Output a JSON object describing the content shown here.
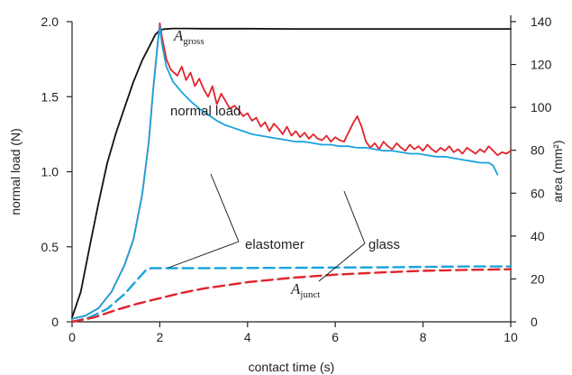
{
  "chart_data": {
    "type": "line",
    "xlabel": "contact time (s)",
    "ylabel_left": "normal load (N)",
    "ylabel_right": "area (mm²)",
    "xlim": [
      0,
      10
    ],
    "ylim_left": [
      0,
      2.0
    ],
    "ylim_right": [
      0,
      140
    ],
    "x_ticks": [
      0,
      2,
      4,
      6,
      8,
      10
    ],
    "y_left_ticks": [
      0,
      0.5,
      1.0,
      1.5,
      2.0
    ],
    "y_left_tick_labels": [
      "0",
      "0.5",
      "1.0",
      "1.5",
      "2.0"
    ],
    "y_right_ticks": [
      0,
      20,
      40,
      60,
      80,
      100,
      120,
      140
    ],
    "grid": false,
    "series": [
      {
        "key": "a_gross",
        "axis": "right",
        "color": "#111111",
        "dash": "solid",
        "x": [
          0,
          0.2,
          0.4,
          0.6,
          0.8,
          1.0,
          1.2,
          1.4,
          1.6,
          1.7,
          1.8,
          1.9,
          2.0,
          2.1,
          2.3,
          2.6,
          3,
          4,
          5,
          6,
          7,
          8,
          9,
          10
        ],
        "y": [
          2,
          14,
          35,
          55,
          74,
          88,
          100,
          112,
          122,
          126,
          130,
          134,
          136,
          136.5,
          136.8,
          136.8,
          136.7,
          136.7,
          136.6,
          136.6,
          136.6,
          136.6,
          136.6,
          136.6
        ]
      },
      {
        "key": "glass_load",
        "axis": "left",
        "color": "#e0242c",
        "dash": "solid",
        "x": [
          0,
          0.3,
          0.6,
          0.9,
          1.2,
          1.4,
          1.6,
          1.75,
          1.85,
          1.95,
          2.0,
          2.05,
          2.15,
          2.25,
          2.4,
          2.5,
          2.6,
          2.7,
          2.8,
          2.9,
          3.0,
          3.1,
          3.2,
          3.3,
          3.4,
          3.5,
          3.6,
          3.7,
          3.8,
          3.9,
          4.0,
          4.1,
          4.2,
          4.3,
          4.4,
          4.5,
          4.6,
          4.7,
          4.8,
          4.9,
          5.0,
          5.1,
          5.2,
          5.3,
          5.4,
          5.5,
          5.6,
          5.7,
          5.8,
          5.9,
          6.0,
          6.1,
          6.2,
          6.3,
          6.4,
          6.5,
          6.6,
          6.7,
          6.8,
          6.9,
          7.0,
          7.1,
          7.2,
          7.3,
          7.4,
          7.5,
          7.6,
          7.7,
          7.8,
          7.9,
          8.0,
          8.1,
          8.2,
          8.3,
          8.4,
          8.5,
          8.6,
          8.7,
          8.8,
          8.9,
          9.0,
          9.1,
          9.2,
          9.3,
          9.4,
          9.5,
          9.6,
          9.7,
          9.8,
          9.9,
          10.0
        ],
        "y": [
          0.02,
          0.04,
          0.09,
          0.2,
          0.38,
          0.55,
          0.85,
          1.2,
          1.55,
          1.85,
          1.99,
          1.9,
          1.75,
          1.68,
          1.64,
          1.7,
          1.61,
          1.66,
          1.57,
          1.62,
          1.55,
          1.5,
          1.57,
          1.45,
          1.52,
          1.47,
          1.42,
          1.44,
          1.41,
          1.37,
          1.39,
          1.34,
          1.36,
          1.3,
          1.33,
          1.27,
          1.32,
          1.29,
          1.25,
          1.3,
          1.24,
          1.27,
          1.23,
          1.26,
          1.22,
          1.25,
          1.22,
          1.21,
          1.24,
          1.2,
          1.23,
          1.21,
          1.2,
          1.26,
          1.32,
          1.37,
          1.3,
          1.2,
          1.16,
          1.19,
          1.15,
          1.2,
          1.17,
          1.15,
          1.19,
          1.16,
          1.14,
          1.18,
          1.15,
          1.17,
          1.14,
          1.18,
          1.15,
          1.13,
          1.16,
          1.14,
          1.17,
          1.13,
          1.15,
          1.12,
          1.16,
          1.14,
          1.12,
          1.15,
          1.13,
          1.17,
          1.14,
          1.11,
          1.13,
          1.12,
          1.14
        ]
      },
      {
        "key": "elastomer_load",
        "axis": "left",
        "color": "#1aa3dc",
        "dash": "solid",
        "x": [
          0,
          0.3,
          0.6,
          0.9,
          1.2,
          1.4,
          1.6,
          1.75,
          1.85,
          1.95,
          2.0,
          2.05,
          2.15,
          2.3,
          2.5,
          2.7,
          2.9,
          3.1,
          3.3,
          3.5,
          3.7,
          3.9,
          4.1,
          4.3,
          4.5,
          4.7,
          4.9,
          5.1,
          5.3,
          5.5,
          5.7,
          5.9,
          6.1,
          6.3,
          6.5,
          6.7,
          6.9,
          7.1,
          7.3,
          7.5,
          7.7,
          7.9,
          8.1,
          8.3,
          8.5,
          8.7,
          8.9,
          9.1,
          9.3,
          9.5,
          9.6,
          9.7
        ],
        "y": [
          0.02,
          0.04,
          0.09,
          0.2,
          0.38,
          0.55,
          0.85,
          1.2,
          1.55,
          1.85,
          1.97,
          1.85,
          1.7,
          1.6,
          1.53,
          1.47,
          1.42,
          1.38,
          1.34,
          1.31,
          1.29,
          1.27,
          1.25,
          1.24,
          1.23,
          1.22,
          1.21,
          1.2,
          1.2,
          1.19,
          1.18,
          1.18,
          1.17,
          1.17,
          1.16,
          1.16,
          1.15,
          1.14,
          1.14,
          1.13,
          1.12,
          1.12,
          1.11,
          1.1,
          1.1,
          1.09,
          1.08,
          1.07,
          1.06,
          1.06,
          1.04,
          0.98
        ]
      },
      {
        "key": "elastomer_a_junct",
        "axis": "right",
        "color": "#1aa3dc",
        "dash": "dashed",
        "x": [
          0,
          0.4,
          0.8,
          1.2,
          1.5,
          1.7,
          1.8,
          2.0,
          3,
          4,
          5,
          6,
          7,
          8,
          9,
          10
        ],
        "y": [
          0,
          2,
          6,
          13,
          20,
          24.5,
          25,
          25,
          25,
          25.1,
          25.2,
          25.3,
          25.4,
          25.6,
          25.8,
          25.8
        ]
      },
      {
        "key": "glass_a_junct",
        "axis": "right",
        "color": "#e0242c",
        "dash": "dashed",
        "x": [
          0,
          0.5,
          1.0,
          1.5,
          2.0,
          2.5,
          3,
          4,
          5,
          6,
          7,
          8,
          9,
          10
        ],
        "y": [
          0,
          2,
          5.5,
          8.5,
          11,
          13.5,
          15.5,
          18.5,
          20.5,
          22,
          23,
          23.8,
          24.2,
          24.5
        ]
      }
    ],
    "annotations": {
      "a_gross_label": {
        "main": "A",
        "sub": "gross"
      },
      "a_junct_label": {
        "main": "A",
        "sub": "junct"
      },
      "normal_load_label": "normal load",
      "elastomer_label": "elastomer",
      "glass_label": "glass"
    }
  }
}
